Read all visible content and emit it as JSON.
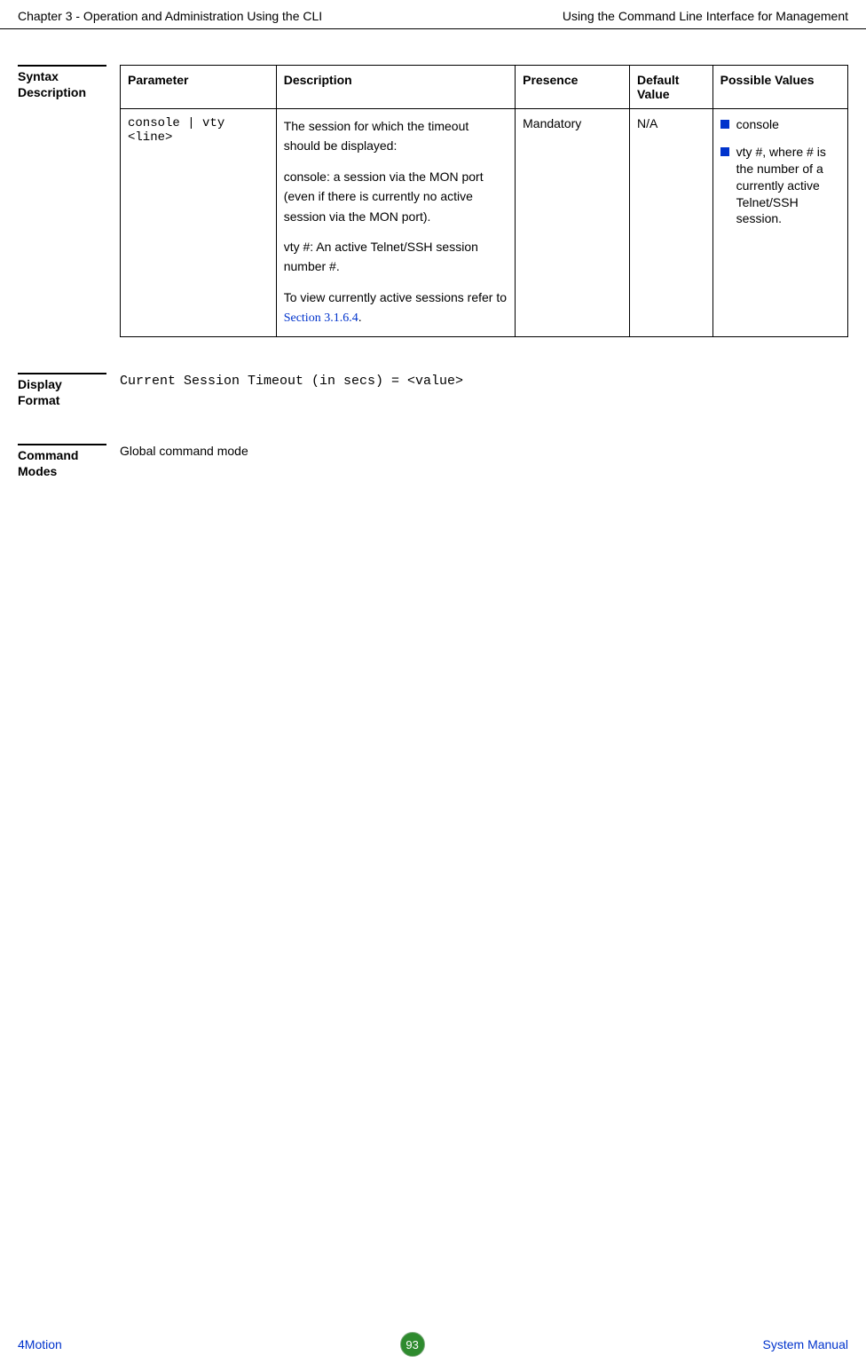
{
  "header": {
    "left": "Chapter 3 - Operation and Administration Using the CLI",
    "right": "Using the Command Line Interface for Management"
  },
  "syntax": {
    "label_line1": "Syntax",
    "label_line2": "Description",
    "table": {
      "headers": {
        "parameter": "Parameter",
        "description": "Description",
        "presence": "Presence",
        "default_value": "Default Value",
        "possible_values": "Possible Values"
      },
      "row": {
        "parameter": "console | vty <line>",
        "desc_p1": "The session for which the timeout should be displayed:",
        "desc_p2": "console: a session via the MON port (even if there is currently no active session via the MON port).",
        "desc_p3": "vty #: An active Telnet/SSH session number #.",
        "desc_p4_prefix": "To view currently active sessions refer to ",
        "desc_p4_link": "Section 3.1.6.4",
        "desc_p4_suffix": ".",
        "presence": "Mandatory",
        "default_value": "N/A",
        "possible1": "console",
        "possible2": "vty #, where # is the number of a currently active Telnet/SSH session."
      }
    }
  },
  "display_format": {
    "label_line1": "Display",
    "label_line2": "Format",
    "text": "Current Session Timeout (in secs) = <value>"
  },
  "command_modes": {
    "label_line1": "Command",
    "label_line2": "Modes",
    "text": "Global command mode"
  },
  "footer": {
    "left": "4Motion",
    "page": "93",
    "right": "System Manual"
  },
  "colors": {
    "link": "#0033cc",
    "badge_bg": "#2e8b2e",
    "badge_fg": "#ffffff"
  }
}
